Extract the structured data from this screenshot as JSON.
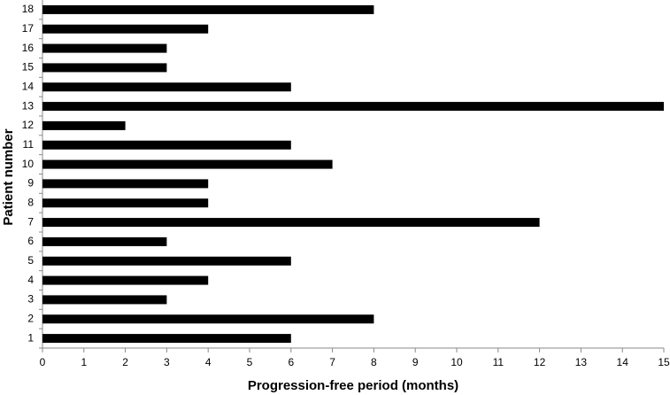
{
  "chart_data": {
    "type": "hbar",
    "xlabel": "Progression-free period (months)",
    "ylabel": "Patient number",
    "categories": [
      "1",
      "2",
      "3",
      "4",
      "5",
      "6",
      "7",
      "8",
      "9",
      "10",
      "11",
      "12",
      "13",
      "14",
      "15",
      "16",
      "17",
      "18"
    ],
    "values": [
      6,
      8,
      3,
      4,
      6,
      3,
      12,
      4,
      4,
      7,
      6,
      2,
      15,
      6,
      3,
      3,
      4,
      8
    ],
    "color": "#000000",
    "xlim": [
      0,
      15
    ],
    "xticks": [
      0,
      1,
      2,
      3,
      4,
      5,
      6,
      7,
      8,
      9,
      10,
      11,
      12,
      13,
      14,
      15
    ],
    "grid": false
  }
}
